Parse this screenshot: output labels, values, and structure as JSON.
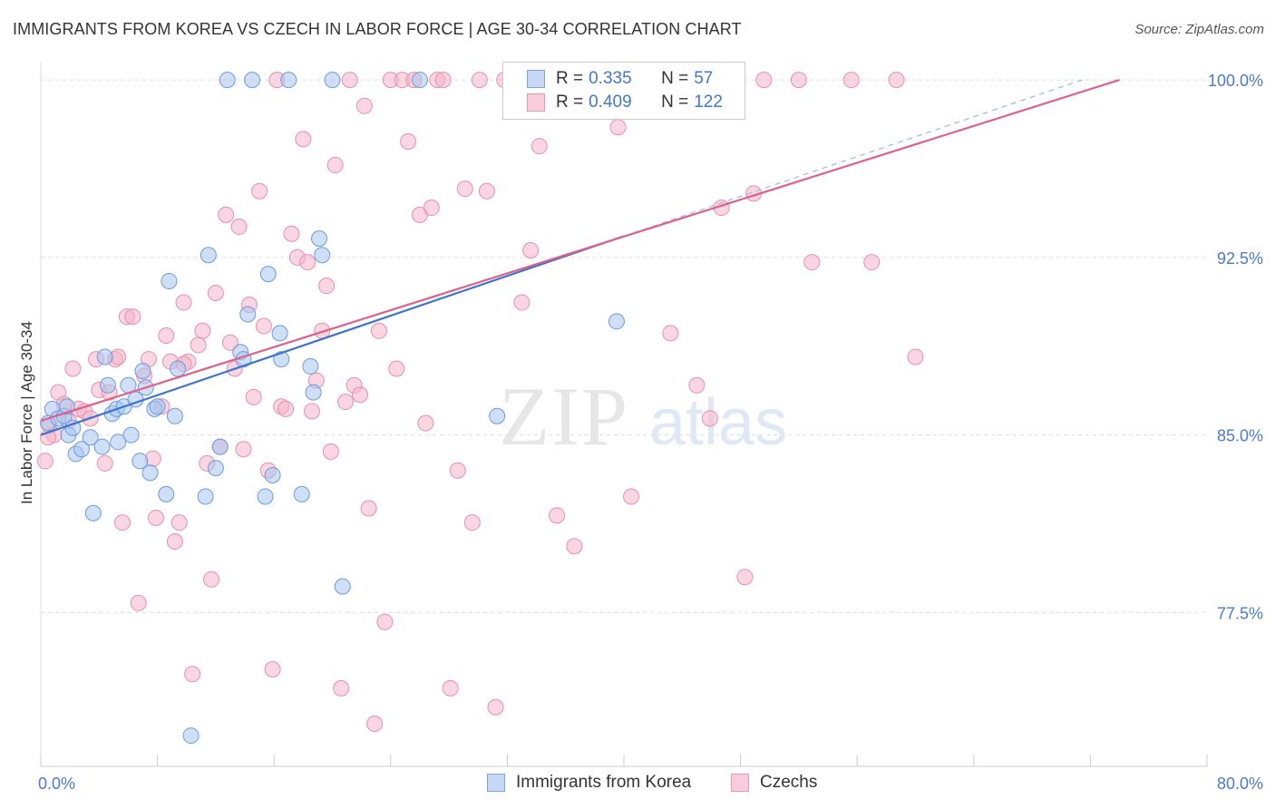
{
  "title": "IMMIGRANTS FROM KOREA VS CZECH IN LABOR FORCE | AGE 30-34 CORRELATION CHART",
  "source": "Source: ZipAtlas.com",
  "watermark": {
    "zip": "ZIP",
    "atlas": "atlas"
  },
  "legend": {
    "korea": {
      "r_label": "R =",
      "r_value": "0.335",
      "n_label": "N =",
      "n_value": "57",
      "color": "#a8c4ee"
    },
    "czech": {
      "r_label": "R =",
      "r_value": "0.409",
      "n_label": "N =",
      "n_value": "122",
      "color": "#f4b5c8"
    }
  },
  "bottom_legend": {
    "korea": "Immigrants from Korea",
    "czech": "Czechs"
  },
  "chart_data": {
    "type": "scatter",
    "title": "IMMIGRANTS FROM KOREA VS CZECH IN LABOR FORCE | AGE 30-34 CORRELATION CHART",
    "xlabel": "",
    "ylabel": "In Labor Force | Age 30-34",
    "xlim": [
      0,
      80
    ],
    "ylim": [
      71,
      101
    ],
    "x_tick_labels": [
      "0.0%",
      "80.0%"
    ],
    "y_ticks": [
      77.5,
      85.0,
      92.5,
      100.0
    ],
    "y_tick_labels": [
      "77.5%",
      "85.0%",
      "92.5%",
      "100.0%"
    ],
    "grid": true,
    "series": [
      {
        "name": "Immigrants from Korea",
        "color": "#a8c4ee",
        "stroke": "#6e9ae0",
        "trend": {
          "x0": 0,
          "y0": 85.0,
          "x1": 40,
          "y1": 93.4,
          "color": "#3a74d0",
          "dash_to_x": 80
        },
        "points": [
          [
            0.5,
            85.5
          ],
          [
            0.8,
            86.1
          ],
          [
            1.2,
            85.7
          ],
          [
            1.6,
            85.8
          ],
          [
            1.8,
            86.2
          ],
          [
            1.9,
            85.0
          ],
          [
            2.2,
            85.3
          ],
          [
            2.4,
            84.2
          ],
          [
            2.8,
            84.4
          ],
          [
            3.4,
            84.9
          ],
          [
            3.6,
            81.7
          ],
          [
            4.2,
            84.5
          ],
          [
            4.4,
            88.3
          ],
          [
            4.6,
            87.1
          ],
          [
            4.9,
            85.9
          ],
          [
            5.2,
            86.1
          ],
          [
            5.3,
            84.7
          ],
          [
            5.7,
            86.2
          ],
          [
            6.0,
            87.1
          ],
          [
            6.2,
            85.0
          ],
          [
            6.5,
            86.5
          ],
          [
            6.8,
            83.9
          ],
          [
            7.0,
            87.7
          ],
          [
            7.2,
            87.0
          ],
          [
            7.5,
            83.4
          ],
          [
            7.8,
            86.1
          ],
          [
            8.0,
            86.2
          ],
          [
            8.6,
            82.5
          ],
          [
            8.8,
            91.5
          ],
          [
            9.2,
            85.8
          ],
          [
            9.4,
            87.8
          ],
          [
            10.3,
            72.3
          ],
          [
            11.3,
            82.4
          ],
          [
            11.5,
            92.6
          ],
          [
            12.0,
            83.6
          ],
          [
            12.3,
            84.5
          ],
          [
            12.8,
            100.0
          ],
          [
            13.7,
            88.5
          ],
          [
            13.9,
            88.2
          ],
          [
            14.2,
            90.1
          ],
          [
            14.5,
            100.0
          ],
          [
            15.4,
            82.4
          ],
          [
            15.6,
            91.8
          ],
          [
            15.9,
            83.3
          ],
          [
            16.4,
            89.3
          ],
          [
            16.5,
            88.2
          ],
          [
            17.0,
            100.0
          ],
          [
            17.9,
            82.5
          ],
          [
            18.5,
            87.9
          ],
          [
            18.7,
            86.8
          ],
          [
            19.1,
            93.3
          ],
          [
            19.3,
            92.6
          ],
          [
            20.0,
            100.0
          ],
          [
            20.7,
            78.6
          ],
          [
            26.0,
            100.0
          ],
          [
            31.3,
            85.8
          ],
          [
            39.5,
            89.8
          ]
        ]
      },
      {
        "name": "Czechs",
        "color": "#f4b5c8",
        "stroke": "#e890ab",
        "trend": {
          "x0": 0,
          "y0": 85.6,
          "x1": 74,
          "y1": 100.0,
          "color": "#e0608c"
        },
        "points": [
          [
            0.3,
            83.9
          ],
          [
            0.6,
            85.4
          ],
          [
            0.9,
            85.0
          ],
          [
            1.2,
            86.8
          ],
          [
            1.6,
            86.3
          ],
          [
            1.9,
            85.6
          ],
          [
            2.2,
            87.8
          ],
          [
            2.6,
            86.1
          ],
          [
            3.0,
            86.0
          ],
          [
            3.4,
            85.7
          ],
          [
            3.8,
            88.2
          ],
          [
            4.0,
            86.9
          ],
          [
            4.4,
            83.8
          ],
          [
            4.7,
            86.8
          ],
          [
            5.1,
            88.2
          ],
          [
            5.3,
            88.3
          ],
          [
            5.6,
            81.3
          ],
          [
            5.9,
            90.0
          ],
          [
            6.3,
            90.0
          ],
          [
            6.7,
            77.9
          ],
          [
            7.1,
            87.5
          ],
          [
            7.4,
            88.2
          ],
          [
            7.7,
            84.0
          ],
          [
            7.9,
            81.5
          ],
          [
            8.3,
            86.2
          ],
          [
            8.6,
            89.2
          ],
          [
            8.9,
            88.1
          ],
          [
            9.2,
            80.5
          ],
          [
            9.5,
            81.3
          ],
          [
            9.8,
            90.6
          ],
          [
            10.1,
            88.1
          ],
          [
            10.4,
            74.9
          ],
          [
            10.8,
            88.8
          ],
          [
            11.1,
            89.4
          ],
          [
            11.4,
            83.8
          ],
          [
            11.7,
            78.9
          ],
          [
            12.0,
            91.0
          ],
          [
            12.3,
            84.5
          ],
          [
            12.7,
            94.3
          ],
          [
            13.0,
            88.9
          ],
          [
            13.3,
            87.8
          ],
          [
            13.6,
            93.8
          ],
          [
            13.9,
            84.4
          ],
          [
            14.3,
            90.5
          ],
          [
            14.6,
            86.6
          ],
          [
            15.0,
            95.3
          ],
          [
            15.3,
            89.6
          ],
          [
            15.6,
            83.5
          ],
          [
            15.9,
            75.1
          ],
          [
            16.2,
            100.0
          ],
          [
            16.5,
            86.2
          ],
          [
            16.8,
            86.1
          ],
          [
            17.2,
            93.5
          ],
          [
            17.6,
            92.5
          ],
          [
            18.0,
            97.5
          ],
          [
            18.3,
            92.3
          ],
          [
            18.6,
            86.0
          ],
          [
            18.9,
            87.3
          ],
          [
            19.3,
            89.4
          ],
          [
            19.6,
            91.3
          ],
          [
            19.9,
            84.3
          ],
          [
            20.2,
            96.4
          ],
          [
            20.6,
            74.3
          ],
          [
            20.9,
            86.4
          ],
          [
            21.2,
            100.0
          ],
          [
            21.5,
            87.1
          ],
          [
            21.9,
            86.7
          ],
          [
            22.2,
            98.9
          ],
          [
            22.5,
            81.9
          ],
          [
            22.9,
            72.8
          ],
          [
            23.2,
            89.4
          ],
          [
            23.6,
            77.1
          ],
          [
            24.0,
            100.0
          ],
          [
            24.4,
            87.8
          ],
          [
            24.8,
            100.0
          ],
          [
            25.2,
            97.4
          ],
          [
            25.6,
            100.0
          ],
          [
            26.0,
            94.3
          ],
          [
            26.4,
            85.5
          ],
          [
            26.8,
            94.6
          ],
          [
            27.2,
            100.0
          ],
          [
            27.6,
            100.0
          ],
          [
            28.1,
            74.3
          ],
          [
            28.6,
            83.5
          ],
          [
            29.1,
            95.4
          ],
          [
            29.6,
            81.3
          ],
          [
            30.1,
            100.0
          ],
          [
            30.6,
            95.3
          ],
          [
            31.2,
            73.5
          ],
          [
            31.8,
            100.0
          ],
          [
            32.4,
            100.0
          ],
          [
            33.0,
            90.6
          ],
          [
            33.6,
            92.8
          ],
          [
            34.2,
            97.2
          ],
          [
            34.8,
            100.0
          ],
          [
            35.4,
            81.6
          ],
          [
            36.0,
            100.0
          ],
          [
            36.6,
            80.3
          ],
          [
            37.2,
            100.0
          ],
          [
            38.0,
            100.0
          ],
          [
            38.8,
            100.0
          ],
          [
            39.6,
            98.0
          ],
          [
            40.5,
            82.4
          ],
          [
            41.4,
            100.0
          ],
          [
            42.3,
            100.0
          ],
          [
            43.2,
            89.3
          ],
          [
            44.1,
            100.0
          ],
          [
            45.0,
            87.1
          ],
          [
            45.9,
            85.7
          ],
          [
            46.7,
            94.6
          ],
          [
            47.5,
            100.0
          ],
          [
            48.3,
            79.0
          ],
          [
            48.9,
            95.2
          ],
          [
            49.6,
            100.0
          ],
          [
            52.0,
            100.0
          ],
          [
            52.9,
            92.3
          ],
          [
            55.6,
            100.0
          ],
          [
            57.0,
            92.3
          ],
          [
            58.7,
            100.0
          ],
          [
            60.0,
            88.3
          ],
          [
            0.5,
            84.9
          ],
          [
            9.8,
            88.0
          ]
        ]
      }
    ]
  }
}
